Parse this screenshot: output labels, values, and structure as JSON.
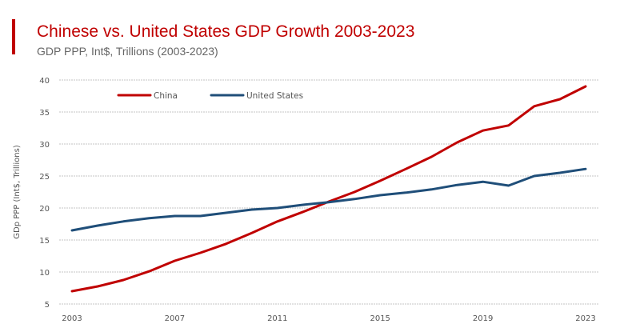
{
  "chart_data": {
    "type": "line",
    "title": "Chinese vs. United States GDP Growth 2003-2023",
    "subtitle": "GDP PPP, Int$, Trillions (2003-2023)",
    "xlabel": "",
    "ylabel": "GDp PPP (Int$, Trillions)",
    "x": [
      2003,
      2004,
      2005,
      2006,
      2007,
      2008,
      2009,
      2010,
      2011,
      2012,
      2013,
      2014,
      2015,
      2016,
      2017,
      2018,
      2019,
      2020,
      2021,
      2022,
      2023
    ],
    "xticks": [
      "2003",
      "2007",
      "2011",
      "2015",
      "2019",
      "2023"
    ],
    "yticks": [
      "5",
      "10",
      "15",
      "20",
      "25",
      "30",
      "35",
      "40"
    ],
    "ylim": [
      5,
      40
    ],
    "grid": true,
    "legend_position": "top-left",
    "series": [
      {
        "name": "China",
        "color": "#c00000",
        "values": [
          7.0,
          7.75,
          8.75,
          10.1,
          11.75,
          13.0,
          14.4,
          16.1,
          17.9,
          19.4,
          21.0,
          22.5,
          24.25,
          26.1,
          28.0,
          30.25,
          32.1,
          32.9,
          35.9,
          37.0,
          39.0
        ]
      },
      {
        "name": "United States",
        "color": "#1f4e79",
        "values": [
          16.5,
          17.25,
          17.9,
          18.4,
          18.75,
          18.75,
          19.25,
          19.75,
          20.0,
          20.5,
          20.9,
          21.4,
          22.0,
          22.4,
          22.9,
          23.6,
          24.1,
          23.5,
          25.0,
          25.5,
          26.1
        ]
      }
    ]
  }
}
